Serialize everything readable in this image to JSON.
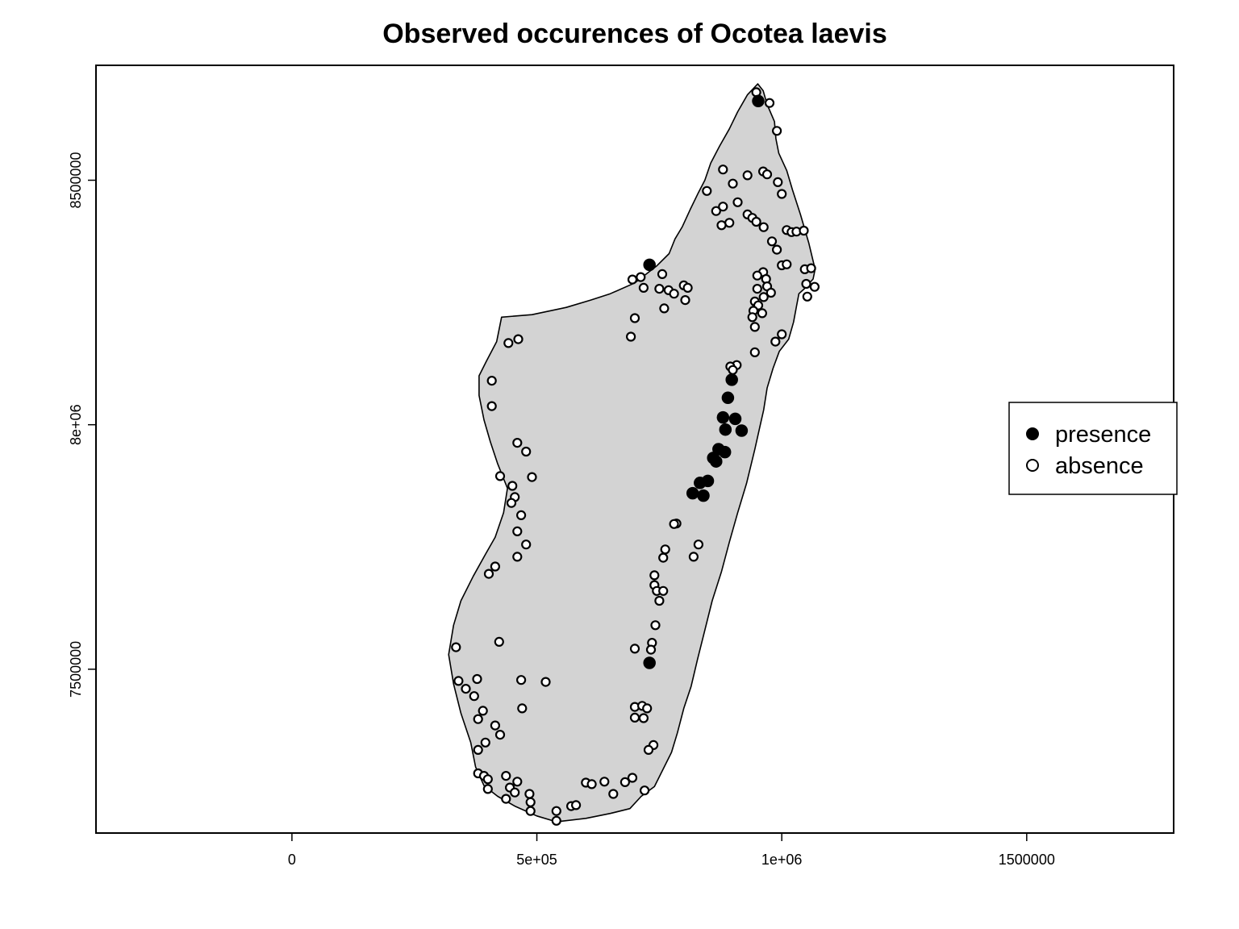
{
  "chart_data": {
    "type": "scatter",
    "title": "Observed occurences of Ocotea laevis",
    "xlabel": "",
    "ylabel": "",
    "xlim": [
      -400000,
      1800000
    ],
    "ylim": [
      7165000,
      8735000
    ],
    "xticks": [
      {
        "value": 0,
        "label": "0"
      },
      {
        "value": 500000,
        "label": "5e+05"
      },
      {
        "value": 1000000,
        "label": "1e+06"
      },
      {
        "value": 1500000,
        "label": "1500000"
      }
    ],
    "yticks": [
      {
        "value": 7500000,
        "label": "7500000"
      },
      {
        "value": 8000000,
        "label": "8e+06"
      },
      {
        "value": 8500000,
        "label": "8500000"
      }
    ],
    "grid": false,
    "legend_position": "right",
    "colors": {
      "land": "#d3d3d3",
      "outline": "#000000",
      "presence": "#000000",
      "absence": "#ffffff"
    },
    "map_outline": [
      [
        951000,
        8697000
      ],
      [
        962000,
        8683000
      ],
      [
        970000,
        8655000
      ],
      [
        985000,
        8620000
      ],
      [
        988000,
        8585000
      ],
      [
        994000,
        8555000
      ],
      [
        1010000,
        8520000
      ],
      [
        1022000,
        8480000
      ],
      [
        1038000,
        8430000
      ],
      [
        1055000,
        8372000
      ],
      [
        1068000,
        8318000
      ],
      [
        1064000,
        8298000
      ],
      [
        1046000,
        8278000
      ],
      [
        1035000,
        8268000
      ],
      [
        1030000,
        8242000
      ],
      [
        1024000,
        8210000
      ],
      [
        1014000,
        8175000
      ],
      [
        995000,
        8150000
      ],
      [
        982000,
        8115000
      ],
      [
        970000,
        8075000
      ],
      [
        963000,
        8030000
      ],
      [
        955000,
        7995000
      ],
      [
        945000,
        7950000
      ],
      [
        928000,
        7880000
      ],
      [
        910000,
        7820000
      ],
      [
        893000,
        7760000
      ],
      [
        877000,
        7700000
      ],
      [
        858000,
        7640000
      ],
      [
        843000,
        7580000
      ],
      [
        828000,
        7520000
      ],
      [
        815000,
        7465000
      ],
      [
        800000,
        7420000
      ],
      [
        787000,
        7370000
      ],
      [
        775000,
        7330000
      ],
      [
        760000,
        7300000
      ],
      [
        740000,
        7260000
      ],
      [
        713000,
        7240000
      ],
      [
        690000,
        7215000
      ],
      [
        650000,
        7205000
      ],
      [
        600000,
        7195000
      ],
      [
        540000,
        7188000
      ],
      [
        500000,
        7200000
      ],
      [
        455000,
        7220000
      ],
      [
        420000,
        7240000
      ],
      [
        392000,
        7262000
      ],
      [
        375000,
        7300000
      ],
      [
        365000,
        7350000
      ],
      [
        345000,
        7410000
      ],
      [
        330000,
        7470000
      ],
      [
        320000,
        7530000
      ],
      [
        330000,
        7590000
      ],
      [
        345000,
        7640000
      ],
      [
        370000,
        7690000
      ],
      [
        395000,
        7735000
      ],
      [
        415000,
        7770000
      ],
      [
        432000,
        7820000
      ],
      [
        440000,
        7870000
      ],
      [
        420000,
        7920000
      ],
      [
        405000,
        7965000
      ],
      [
        392000,
        8010000
      ],
      [
        382000,
        8060000
      ],
      [
        382000,
        8100000
      ],
      [
        397000,
        8130000
      ],
      [
        418000,
        8170000
      ],
      [
        428000,
        8220000
      ],
      [
        490000,
        8225000
      ],
      [
        560000,
        8240000
      ],
      [
        610000,
        8255000
      ],
      [
        650000,
        8268000
      ],
      [
        700000,
        8290000
      ],
      [
        745000,
        8325000
      ],
      [
        770000,
        8350000
      ],
      [
        782000,
        8380000
      ],
      [
        797000,
        8405000
      ],
      [
        813000,
        8440000
      ],
      [
        830000,
        8475000
      ],
      [
        843000,
        8500000
      ],
      [
        855000,
        8535000
      ],
      [
        873000,
        8570000
      ],
      [
        893000,
        8605000
      ],
      [
        910000,
        8640000
      ],
      [
        930000,
        8675000
      ],
      [
        951000,
        8697000
      ]
    ],
    "series": [
      {
        "name": "presence",
        "marker": "filled-circle",
        "points": [
          [
            952000,
            8662000
          ],
          [
            730000,
            8327000
          ],
          [
            898000,
            8092000
          ],
          [
            890000,
            8055000
          ],
          [
            880000,
            8015000
          ],
          [
            885000,
            7990000
          ],
          [
            905000,
            8012000
          ],
          [
            918000,
            7988000
          ],
          [
            871000,
            7950000
          ],
          [
            884000,
            7944000
          ],
          [
            860000,
            7932000
          ],
          [
            866000,
            7925000
          ],
          [
            849000,
            7885000
          ],
          [
            833000,
            7881000
          ],
          [
            818000,
            7860000
          ],
          [
            840000,
            7855000
          ],
          [
            730000,
            7513000
          ]
        ]
      },
      {
        "name": "absence",
        "marker": "open-circle",
        "points": [
          [
            948000,
            8680000
          ],
          [
            975000,
            8658000
          ],
          [
            990000,
            8601000
          ],
          [
            962000,
            8518000
          ],
          [
            970000,
            8512000
          ],
          [
            992000,
            8496000
          ],
          [
            1000000,
            8472000
          ],
          [
            930000,
            8510000
          ],
          [
            880000,
            8522000
          ],
          [
            900000,
            8493000
          ],
          [
            847000,
            8478000
          ],
          [
            866000,
            8437000
          ],
          [
            880000,
            8446000
          ],
          [
            910000,
            8455000
          ],
          [
            930000,
            8430000
          ],
          [
            940000,
            8423000
          ],
          [
            948000,
            8415000
          ],
          [
            893000,
            8413000
          ],
          [
            877000,
            8408000
          ],
          [
            963000,
            8404000
          ],
          [
            980000,
            8375000
          ],
          [
            990000,
            8358000
          ],
          [
            1010000,
            8398000
          ],
          [
            1020000,
            8394000
          ],
          [
            1030000,
            8395000
          ],
          [
            1045000,
            8397000
          ],
          [
            1000000,
            8326000
          ],
          [
            1010000,
            8328000
          ],
          [
            1047000,
            8318000
          ],
          [
            1060000,
            8320000
          ],
          [
            962000,
            8312000
          ],
          [
            950000,
            8305000
          ],
          [
            968000,
            8298000
          ],
          [
            970000,
            8283000
          ],
          [
            950000,
            8278000
          ],
          [
            978000,
            8270000
          ],
          [
            963000,
            8261000
          ],
          [
            1050000,
            8288000
          ],
          [
            1067000,
            8282000
          ],
          [
            1052000,
            8262000
          ],
          [
            945000,
            8252000
          ],
          [
            952000,
            8244000
          ],
          [
            942000,
            8233000
          ],
          [
            960000,
            8228000
          ],
          [
            940000,
            8220000
          ],
          [
            945000,
            8200000
          ],
          [
            987000,
            8170000
          ],
          [
            1000000,
            8185000
          ],
          [
            945000,
            8148000
          ],
          [
            908000,
            8122000
          ],
          [
            895000,
            8119000
          ],
          [
            900000,
            8112000
          ],
          [
            756000,
            8308000
          ],
          [
            712000,
            8302000
          ],
          [
            718000,
            8280000
          ],
          [
            695000,
            8297000
          ],
          [
            750000,
            8278000
          ],
          [
            769000,
            8275000
          ],
          [
            780000,
            8268000
          ],
          [
            800000,
            8285000
          ],
          [
            808000,
            8280000
          ],
          [
            803000,
            8255000
          ],
          [
            760000,
            8238000
          ],
          [
            700000,
            8218000
          ],
          [
            692000,
            8180000
          ],
          [
            462000,
            8175000
          ],
          [
            442000,
            8167000
          ],
          [
            408000,
            8090000
          ],
          [
            408000,
            8038000
          ],
          [
            460000,
            7963000
          ],
          [
            478000,
            7945000
          ],
          [
            425000,
            7895000
          ],
          [
            490000,
            7893000
          ],
          [
            450000,
            7875000
          ],
          [
            455000,
            7852000
          ],
          [
            448000,
            7840000
          ],
          [
            468000,
            7815000
          ],
          [
            460000,
            7782000
          ],
          [
            478000,
            7755000
          ],
          [
            460000,
            7730000
          ],
          [
            415000,
            7710000
          ],
          [
            402000,
            7695000
          ],
          [
            785000,
            7798000
          ],
          [
            780000,
            7797000
          ],
          [
            830000,
            7755000
          ],
          [
            820000,
            7730000
          ],
          [
            762000,
            7745000
          ],
          [
            758000,
            7728000
          ],
          [
            740000,
            7692000
          ],
          [
            740000,
            7672000
          ],
          [
            745000,
            7660000
          ],
          [
            758000,
            7660000
          ],
          [
            750000,
            7640000
          ],
          [
            742000,
            7590000
          ],
          [
            735000,
            7554000
          ],
          [
            733000,
            7540000
          ],
          [
            700000,
            7542000
          ],
          [
            423000,
            7556000
          ],
          [
            335000,
            7545000
          ],
          [
            378000,
            7480000
          ],
          [
            340000,
            7476000
          ],
          [
            355000,
            7460000
          ],
          [
            372000,
            7445000
          ],
          [
            468000,
            7478000
          ],
          [
            518000,
            7474000
          ],
          [
            700000,
            7423000
          ],
          [
            715000,
            7425000
          ],
          [
            725000,
            7420000
          ],
          [
            700000,
            7401000
          ],
          [
            718000,
            7400000
          ],
          [
            390000,
            7415000
          ],
          [
            380000,
            7398000
          ],
          [
            415000,
            7385000
          ],
          [
            425000,
            7366000
          ],
          [
            395000,
            7350000
          ],
          [
            380000,
            7335000
          ],
          [
            470000,
            7420000
          ],
          [
            738000,
            7345000
          ],
          [
            728000,
            7335000
          ],
          [
            380000,
            7287000
          ],
          [
            392000,
            7282000
          ],
          [
            400000,
            7275000
          ],
          [
            400000,
            7255000
          ],
          [
            437000,
            7282000
          ],
          [
            445000,
            7258000
          ],
          [
            460000,
            7270000
          ],
          [
            437000,
            7235000
          ],
          [
            455000,
            7248000
          ],
          [
            485000,
            7245000
          ],
          [
            487000,
            7228000
          ],
          [
            487000,
            7210000
          ],
          [
            540000,
            7210000
          ],
          [
            540000,
            7190000
          ],
          [
            570000,
            7220000
          ],
          [
            580000,
            7222000
          ],
          [
            600000,
            7268000
          ],
          [
            612000,
            7265000
          ],
          [
            638000,
            7270000
          ],
          [
            680000,
            7269000
          ],
          [
            695000,
            7278000
          ],
          [
            656000,
            7245000
          ],
          [
            720000,
            7252000
          ]
        ]
      }
    ],
    "legend": [
      {
        "label": "presence",
        "marker": "filled-circle"
      },
      {
        "label": "absence",
        "marker": "open-circle"
      }
    ]
  }
}
